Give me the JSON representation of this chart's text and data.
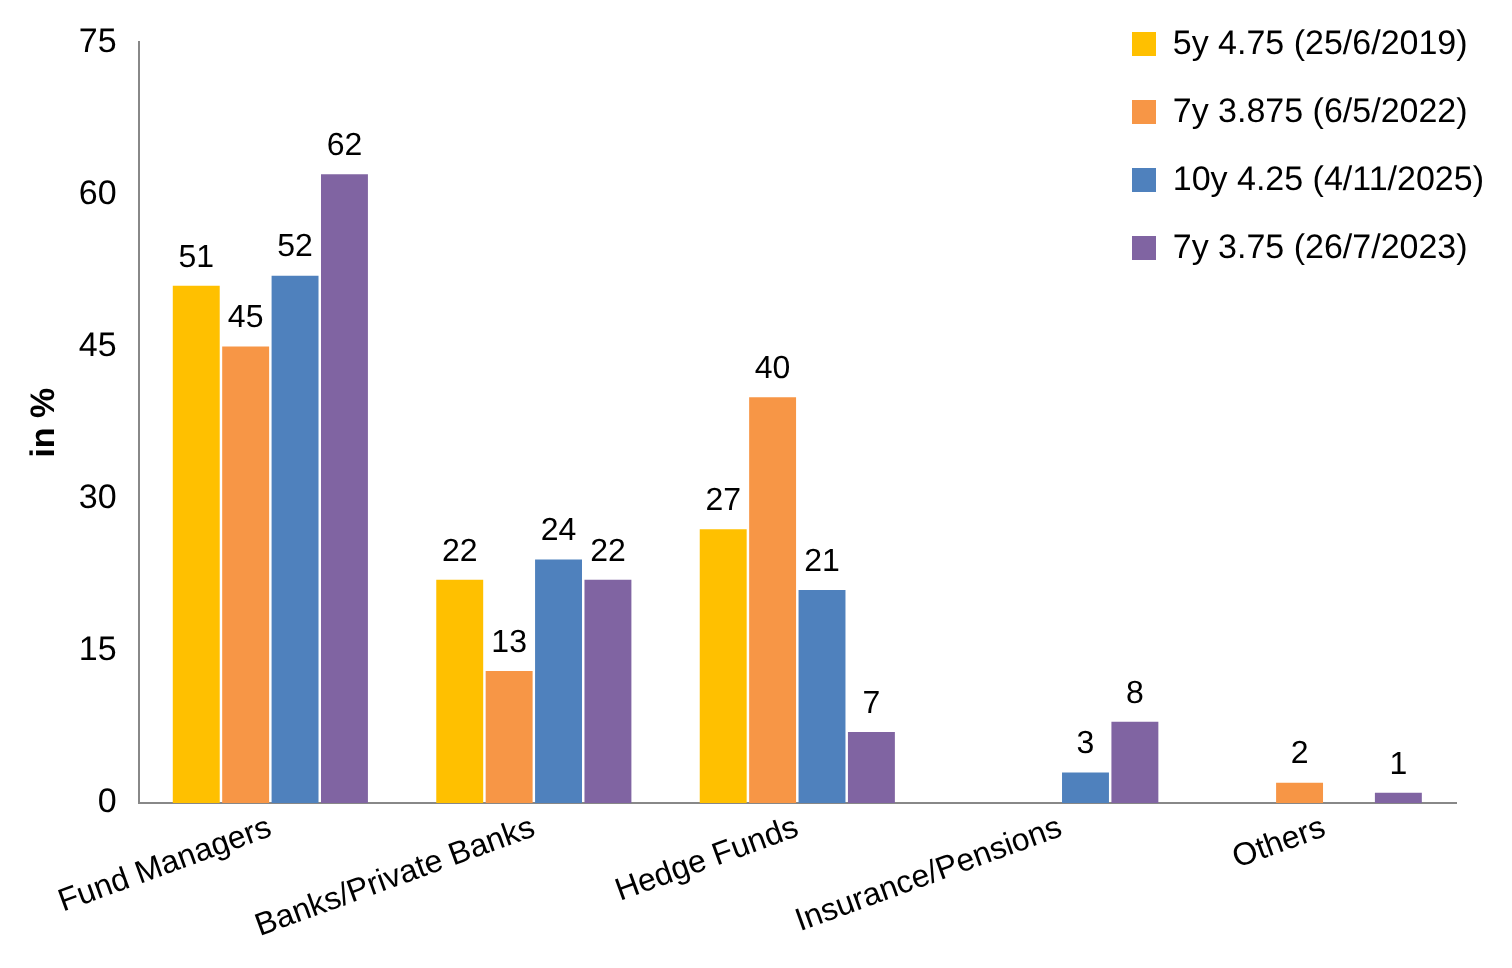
{
  "chart_data": {
    "type": "bar",
    "ylabel": "in %",
    "categories": [
      "Fund Managers",
      "Banks/Private Banks",
      "Hedge Funds",
      "Insurance/Pensions",
      "Others"
    ],
    "series": [
      {
        "name": "5y 4.75 (25/6/2019)",
        "color": "#ffc000",
        "values": [
          51,
          22,
          27,
          null,
          null
        ]
      },
      {
        "name": "7y 3.875 (6/5/2022)",
        "color": "#f79646",
        "values": [
          45,
          13,
          40,
          null,
          2
        ]
      },
      {
        "name": "10y 4.25 (4/11/2025)",
        "color": "#4f81bd",
        "values": [
          52,
          24,
          21,
          3,
          null
        ]
      },
      {
        "name": "7y 3.75 (26/7/2023)",
        "color": "#8064a2",
        "values": [
          62,
          22,
          7,
          8,
          1
        ]
      }
    ],
    "ylim": [
      0,
      75
    ],
    "yticks": [
      0,
      15,
      30,
      45,
      60,
      75
    ],
    "grid": false,
    "legend": "top right",
    "data_labels": true
  }
}
